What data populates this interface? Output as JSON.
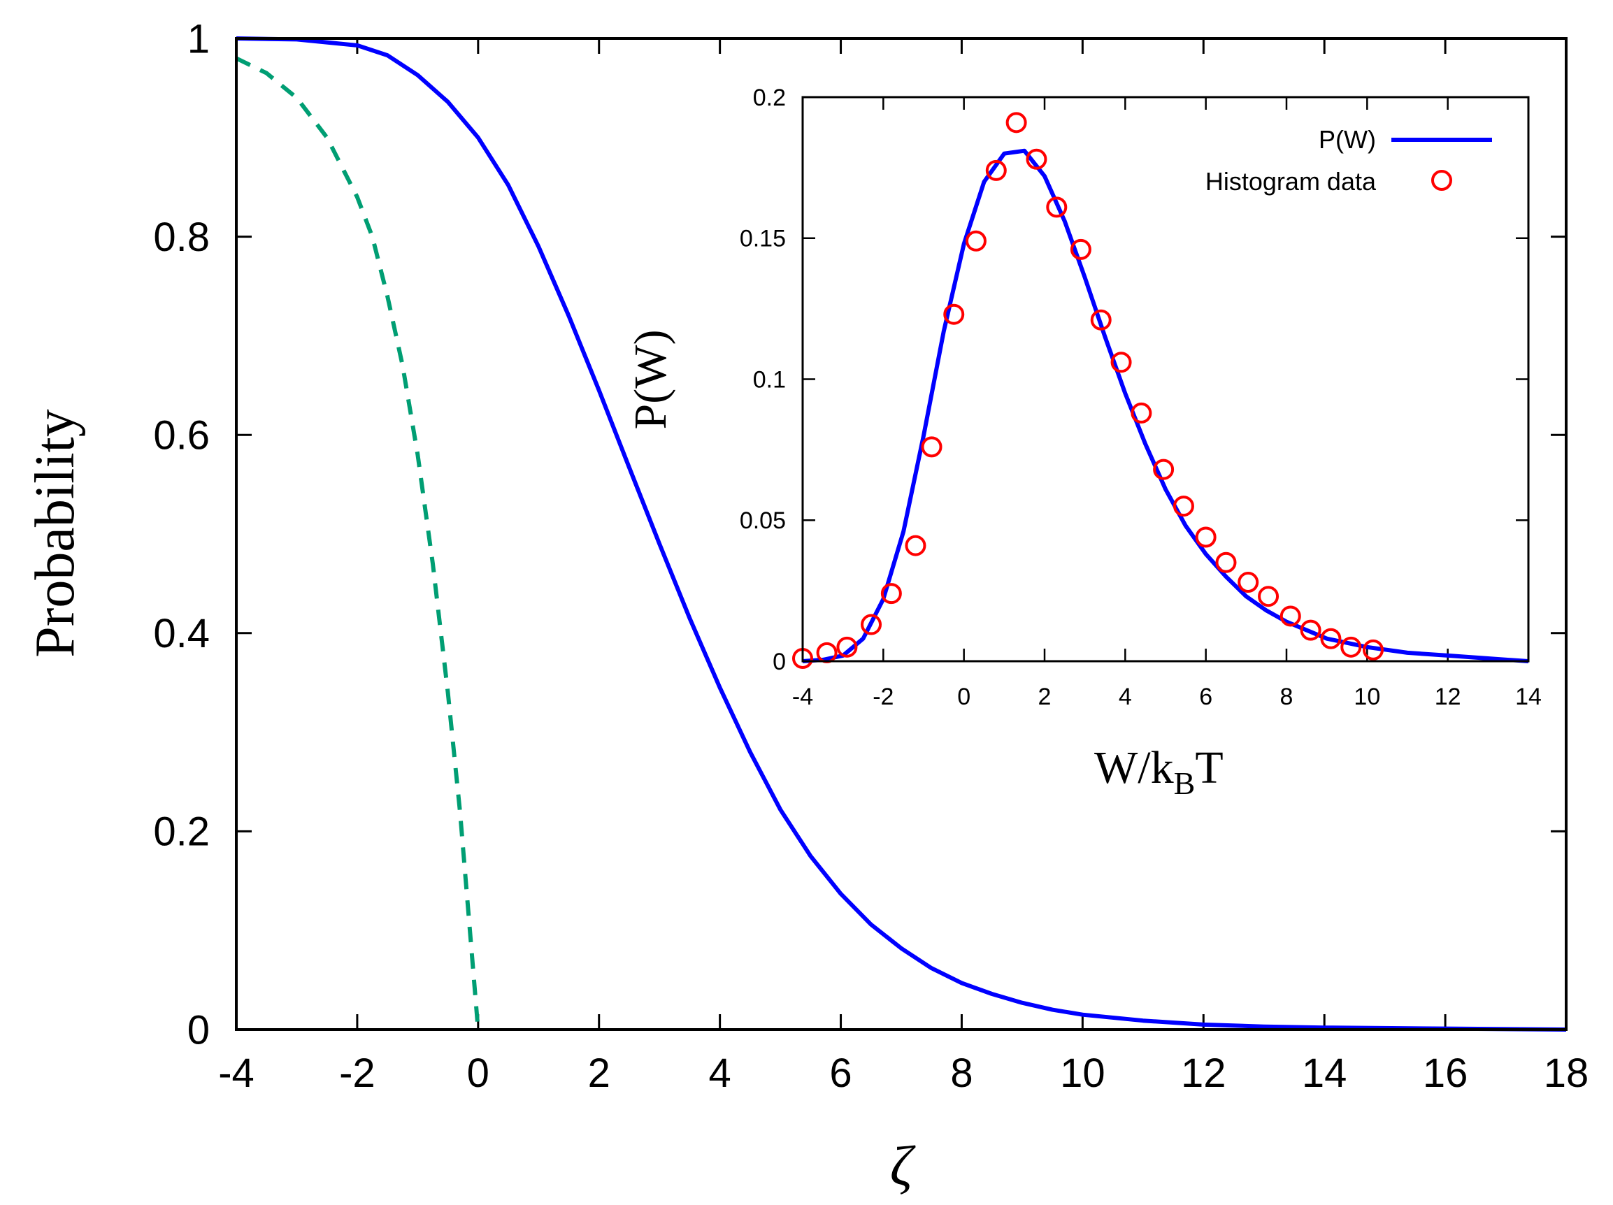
{
  "main": {
    "chart_data": {
      "type": "line",
      "xlabel": "ζ",
      "ylabel": "Probability",
      "xlim": [
        -4,
        18
      ],
      "ylim": [
        0,
        1
      ],
      "xticks": [
        -4,
        -2,
        0,
        2,
        4,
        6,
        8,
        10,
        12,
        14,
        16,
        18
      ],
      "yticks": [
        0,
        0.2,
        0.4,
        0.6,
        0.8,
        1
      ],
      "xtick_labels": [
        "-4",
        "-2",
        "0",
        "2",
        "4",
        "6",
        "8",
        "10",
        "12",
        "14",
        "16",
        "18"
      ],
      "ytick_labels": [
        "0",
        "0.2",
        "0.4",
        "0.6",
        "0.8",
        "1"
      ],
      "series": [
        {
          "name": "solid blue curve",
          "style": "solid",
          "color": "#0000ff",
          "x": [
            -4,
            -3,
            -2,
            -1.5,
            -1,
            -0.5,
            0,
            0.5,
            1,
            1.5,
            2,
            2.5,
            3,
            3.5,
            4,
            4.5,
            5,
            5.5,
            6,
            6.5,
            7,
            7.5,
            8,
            8.5,
            9,
            9.5,
            10,
            11,
            12,
            13,
            14,
            16,
            18
          ],
          "y": [
            1.0,
            0.999,
            0.993,
            0.983,
            0.963,
            0.936,
            0.9,
            0.852,
            0.79,
            0.72,
            0.645,
            0.567,
            0.49,
            0.415,
            0.345,
            0.28,
            0.222,
            0.175,
            0.137,
            0.106,
            0.082,
            0.062,
            0.047,
            0.036,
            0.027,
            0.02,
            0.015,
            0.009,
            0.005,
            0.003,
            0.002,
            0.001,
            0.0
          ]
        },
        {
          "name": "dashed green curve",
          "style": "dashed",
          "color": "#009e73",
          "x": [
            -4,
            -3.5,
            -3,
            -2.5,
            -2,
            -1.75,
            -1.5,
            -1.25,
            -1,
            -0.75,
            -0.5,
            -0.3,
            -0.15,
            0
          ],
          "y": [
            0.98,
            0.965,
            0.94,
            0.9,
            0.84,
            0.8,
            0.74,
            0.67,
            0.58,
            0.47,
            0.34,
            0.22,
            0.11,
            0.0
          ]
        }
      ]
    }
  },
  "inset": {
    "chart_data": {
      "type": "line",
      "xlabel_main": "W/k",
      "xlabel_sub": "B",
      "xlabel_tail": "T",
      "ylabel": "P(W)",
      "xlim": [
        -4,
        14
      ],
      "ylim": [
        0,
        0.2
      ],
      "xticks": [
        -4,
        -2,
        0,
        2,
        4,
        6,
        8,
        10,
        12,
        14
      ],
      "yticks": [
        0,
        0.05,
        0.1,
        0.15,
        0.2
      ],
      "xtick_labels": [
        "-4",
        "-2",
        "0",
        "2",
        "4",
        "6",
        "8",
        "10",
        "12",
        "14"
      ],
      "ytick_labels": [
        "0",
        "0.05",
        "0.1",
        "0.15",
        "0.2"
      ],
      "legend_position": "top-right",
      "series": [
        {
          "name": "P(W)",
          "style": "line",
          "color": "#0000ff",
          "x": [
            -4,
            -3.5,
            -3,
            -2.5,
            -2,
            -1.5,
            -1,
            -0.5,
            0,
            0.5,
            1,
            1.5,
            2,
            2.5,
            3,
            3.5,
            4,
            4.5,
            5,
            5.5,
            6,
            6.5,
            7,
            7.5,
            8,
            9,
            10,
            11,
            12,
            13,
            14
          ],
          "y": [
            0.0,
            0.0005,
            0.002,
            0.008,
            0.022,
            0.046,
            0.08,
            0.117,
            0.148,
            0.17,
            0.18,
            0.181,
            0.172,
            0.156,
            0.136,
            0.115,
            0.095,
            0.077,
            0.061,
            0.048,
            0.038,
            0.03,
            0.023,
            0.018,
            0.014,
            0.008,
            0.005,
            0.003,
            0.002,
            0.001,
            0.0
          ]
        },
        {
          "name": "Histogram data",
          "style": "markers",
          "color": "#ff0000",
          "x": [
            -4.0,
            -3.4,
            -2.9,
            -2.3,
            -1.8,
            -1.2,
            -0.8,
            -0.25,
            0.3,
            0.8,
            1.3,
            1.8,
            2.3,
            2.9,
            3.4,
            3.9,
            4.4,
            4.95,
            5.45,
            6.0,
            6.5,
            7.05,
            7.55,
            8.1,
            8.6,
            9.1,
            9.6,
            10.15
          ],
          "y": [
            0.001,
            0.003,
            0.005,
            0.013,
            0.024,
            0.041,
            0.076,
            0.123,
            0.149,
            0.174,
            0.191,
            0.178,
            0.161,
            0.146,
            0.121,
            0.106,
            0.088,
            0.068,
            0.055,
            0.044,
            0.035,
            0.028,
            0.023,
            0.016,
            0.011,
            0.008,
            0.005,
            0.004
          ]
        }
      ]
    }
  }
}
